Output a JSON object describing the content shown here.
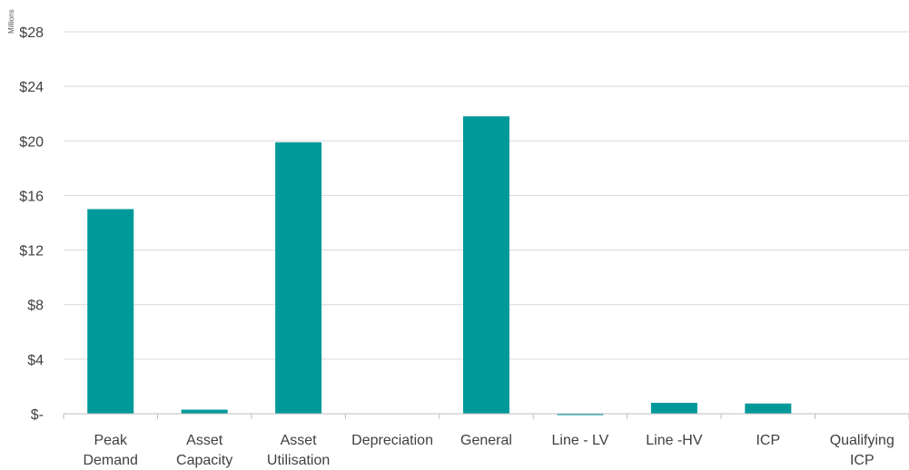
{
  "chart_data": {
    "type": "bar",
    "unit_label": "Millions",
    "categories": [
      [
        "Peak",
        "Demand"
      ],
      [
        "Asset",
        "Capacity"
      ],
      [
        "Asset",
        "Utilisation"
      ],
      [
        "Depreciation"
      ],
      [
        "General"
      ],
      [
        "Line - LV"
      ],
      [
        "Line -HV"
      ],
      [
        "ICP"
      ],
      [
        "Qualifying",
        "ICP"
      ]
    ],
    "values": [
      15.0,
      0.3,
      19.9,
      0,
      21.8,
      -0.05,
      0.8,
      0.75,
      0
    ],
    "ylim": [
      0,
      28
    ],
    "yticks": [
      {
        "value": 0,
        "label": "$-"
      },
      {
        "value": 4,
        "label": "$4"
      },
      {
        "value": 8,
        "label": "$8"
      },
      {
        "value": 12,
        "label": "$12"
      },
      {
        "value": 16,
        "label": "$16"
      },
      {
        "value": 20,
        "label": "$20"
      },
      {
        "value": 24,
        "label": "$24"
      },
      {
        "value": 28,
        "label": "$28"
      }
    ],
    "bar_color": "#009999",
    "grid": true,
    "legend": false
  }
}
